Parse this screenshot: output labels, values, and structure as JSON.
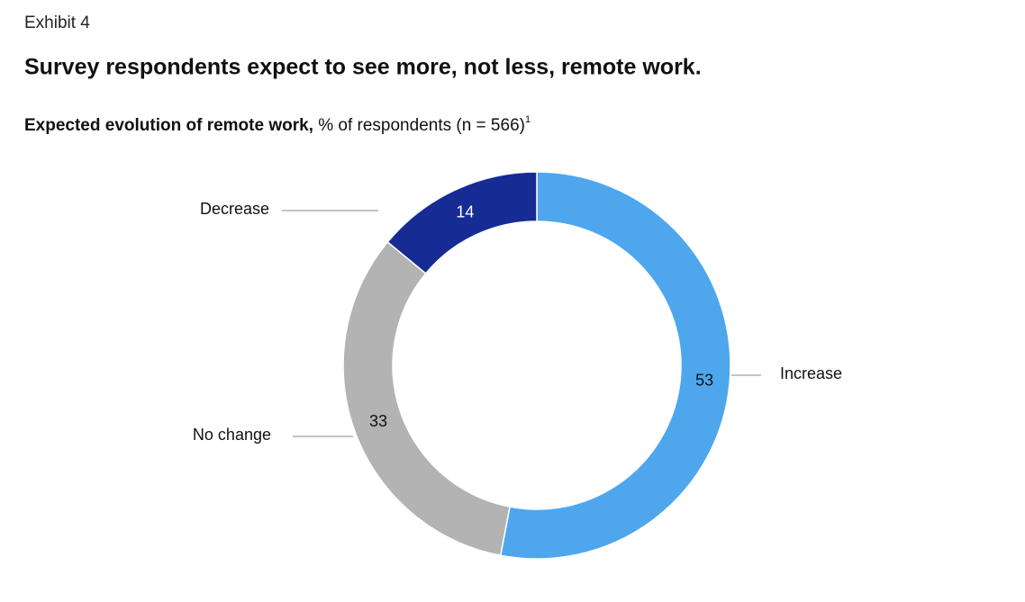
{
  "chart_data": {
    "type": "donut",
    "exhibit": "Exhibit 4",
    "title": "Survey respondents expect to see more, not less, remote work.",
    "subtitle_bold": "Expected evolution of remote work,",
    "subtitle": "% of respondents (n = 566)",
    "footnote_mark": "1",
    "categories": [
      "Increase",
      "No change",
      "Decrease"
    ],
    "values": [
      53,
      33,
      14
    ],
    "colors": [
      "#4ea7ed",
      "#b3b3b3",
      "#172b94"
    ],
    "value_label_colors": [
      "#111111",
      "#111111",
      "#ffffff"
    ]
  }
}
